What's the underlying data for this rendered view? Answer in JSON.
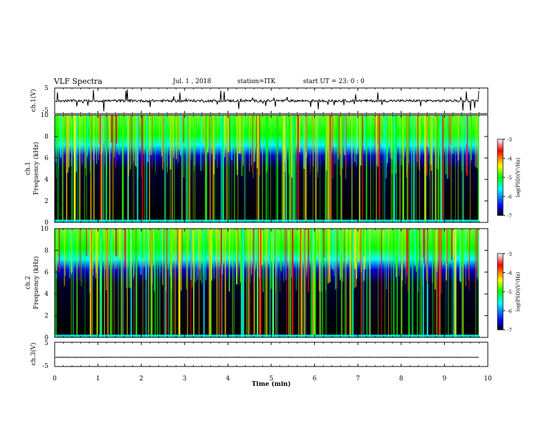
{
  "header": {
    "title": "VLF Spectra",
    "date": "Jul. 1 , 2018",
    "station": "station=ITK",
    "start": "start UT = 23: 0 : 0"
  },
  "chart_data": [
    {
      "type": "line",
      "panel": "ch1-waveform",
      "ylabel": "ch.1(V)",
      "ylim": [
        -5,
        5
      ],
      "yticks": [
        -5,
        5
      ],
      "xlim": [
        0,
        10
      ],
      "baseline": 0,
      "noise_amplitude": 1,
      "impulsive_spikes": true
    },
    {
      "type": "heatmap",
      "panel": "ch1-spectrogram",
      "ylabel_line1": "ch.1",
      "ylabel_line2": "Frequency (kHz)",
      "ylim": [
        0,
        10
      ],
      "yticks": [
        0,
        2,
        4,
        6,
        8,
        10
      ],
      "xlim": [
        0,
        9.8
      ],
      "colorbar": {
        "label": "log(PSD)(V²/Hz)",
        "range": [
          -7,
          -3
        ],
        "ticks": [
          -3,
          -4,
          -5,
          -6,
          -7
        ],
        "colors": [
          "#000000",
          "#0000ff",
          "#00ffff",
          "#00ff00",
          "#ffff00",
          "#ff0000",
          "#ffffff"
        ]
      }
    },
    {
      "type": "heatmap",
      "panel": "ch2-spectrogram",
      "ylabel_line1": "ch.2",
      "ylabel_line2": "Frequency (kHz)",
      "ylim": [
        0,
        10
      ],
      "yticks": [
        0,
        2,
        4,
        6,
        8,
        10
      ],
      "xlim": [
        0,
        9.8
      ],
      "colorbar": {
        "label": "log(PSD)(V²/Hz)",
        "range": [
          -7,
          -3
        ],
        "ticks": [
          -3,
          -4,
          -5,
          -6,
          -7
        ],
        "colors": [
          "#000000",
          "#0000ff",
          "#00ffff",
          "#00ff00",
          "#ffff00",
          "#ff0000",
          "#ffffff"
        ]
      }
    },
    {
      "type": "line",
      "panel": "ch3-waveform",
      "ylabel": "ch.3(V)",
      "ylim": [
        -5,
        5
      ],
      "yticks": [
        -5,
        5
      ],
      "xlim": [
        0,
        10
      ],
      "baseline": -1.2,
      "noise_amplitude": 0.1,
      "impulsive_spikes": false
    }
  ],
  "xaxis": {
    "label": "Time (min)",
    "range": [
      0,
      10
    ],
    "ticks": [
      "0",
      "1",
      "2",
      "3",
      "4",
      "5",
      "6",
      "7",
      "8",
      "9",
      "10"
    ]
  }
}
